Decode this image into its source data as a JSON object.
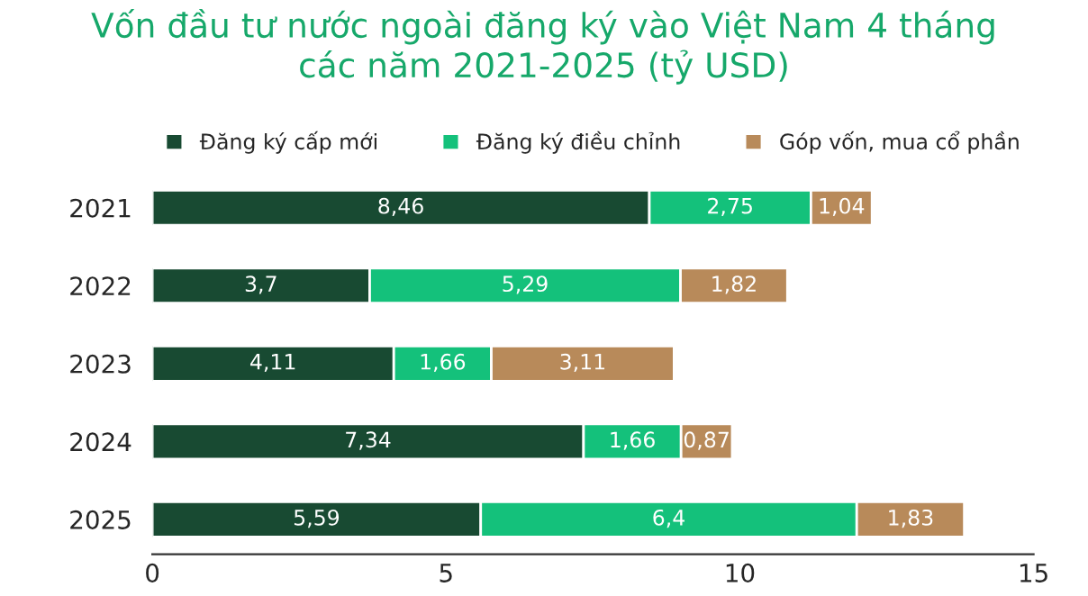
{
  "chart_data": {
    "type": "bar",
    "orientation": "horizontal",
    "stacked": true,
    "title": "Vốn đầu tư nước ngoài đăng ký vào Việt Nam 4 tháng\ncác năm 2021-2025 (tỷ USD)",
    "categories": [
      "2021",
      "2022",
      "2023",
      "2024",
      "2025"
    ],
    "series": [
      {
        "name": "Đăng ký cấp mới",
        "color": "#184a32",
        "values": [
          8.46,
          3.7,
          4.11,
          7.34,
          5.59
        ],
        "value_labels": [
          "8,46",
          "3,7",
          "4,11",
          "7,34",
          "5,59"
        ]
      },
      {
        "name": "Đăng ký điều chỉnh",
        "color": "#14c17b",
        "values": [
          2.75,
          5.29,
          1.66,
          1.66,
          6.4
        ],
        "value_labels": [
          "2,75",
          "5,29",
          "1,66",
          "1,66",
          "6,4"
        ]
      },
      {
        "name": "Góp vốn, mua cổ phần",
        "color": "#b88a5a",
        "values": [
          1.04,
          1.82,
          3.11,
          0.87,
          1.83
        ],
        "value_labels": [
          "1,04",
          "1,82",
          "3,11",
          "0,87",
          "1,83"
        ]
      }
    ],
    "xlim": [
      0,
      15
    ],
    "xticks": [
      0,
      5,
      10,
      15
    ],
    "legend": "top",
    "grid": false
  }
}
